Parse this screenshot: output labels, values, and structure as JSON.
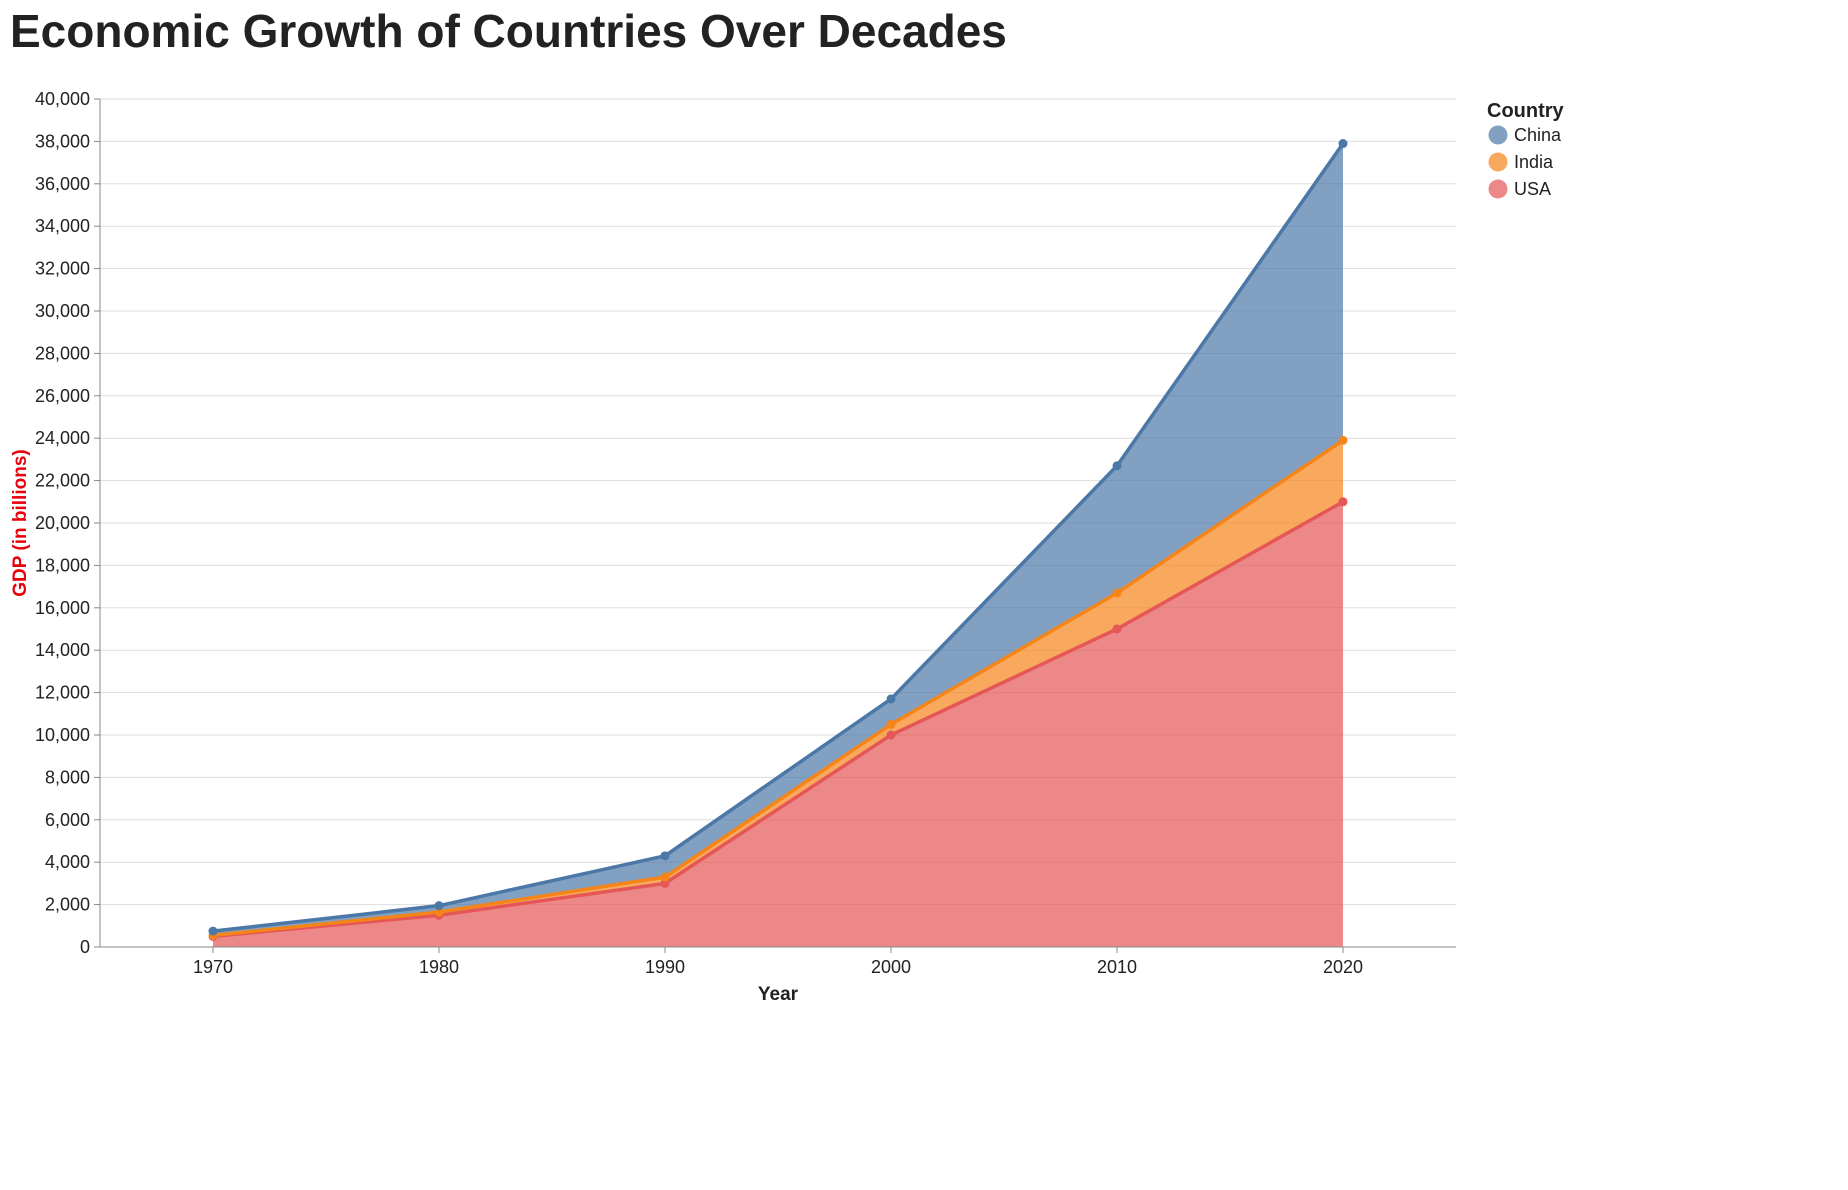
{
  "chart_data": {
    "type": "area",
    "stacked": true,
    "title": "Economic Growth of Countries Over Decades",
    "xlabel": "Year",
    "ylabel": "GDP (in billions)",
    "x": [
      1970,
      1980,
      1990,
      2000,
      2010,
      2020
    ],
    "xlim": [
      1965,
      2025
    ],
    "ylim": [
      0,
      40000
    ],
    "y_ticks": [
      0,
      2000,
      4000,
      6000,
      8000,
      10000,
      12000,
      14000,
      16000,
      18000,
      20000,
      22000,
      24000,
      26000,
      28000,
      30000,
      32000,
      34000,
      36000,
      38000,
      40000
    ],
    "grid": "horizontal",
    "legend": {
      "title": "Country",
      "placement": "top-right"
    },
    "series": [
      {
        "name": "USA",
        "values": [
          500,
          1500,
          3000,
          10000,
          15000,
          21000
        ],
        "color": "#e45756"
      },
      {
        "name": "India",
        "values": [
          50,
          150,
          300,
          500,
          1700,
          2900
        ],
        "color": "#f58518"
      },
      {
        "name": "China",
        "values": [
          200,
          300,
          1000,
          1200,
          6000,
          14000
        ],
        "color": "#4c78a8"
      }
    ],
    "series_order_stack": [
      "USA",
      "India",
      "China"
    ],
    "legend_order": [
      "China",
      "India",
      "USA"
    ],
    "ylabel_color": "#e8000b"
  }
}
